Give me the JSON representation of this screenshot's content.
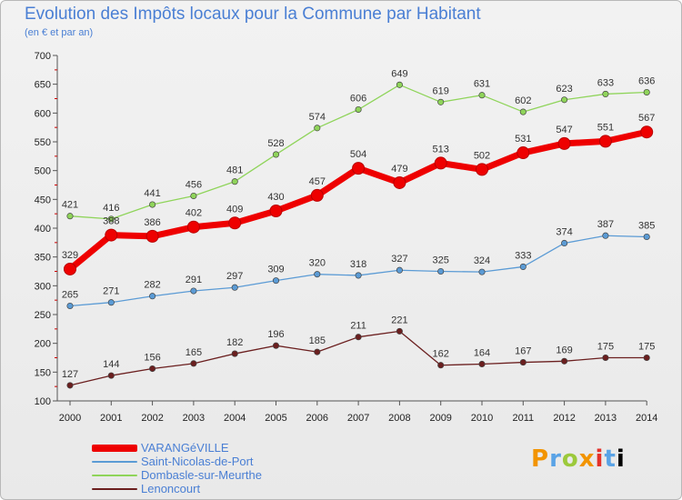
{
  "header": {
    "title": "Evolution des Impôts locaux pour la Commune par Habitant",
    "subtitle": "(en € et par an)"
  },
  "logo": {
    "text": "Proxiti",
    "letters": [
      "P",
      "r",
      "o",
      "x",
      "i",
      "t",
      "i"
    ]
  },
  "chart_data": {
    "type": "line",
    "title": "Evolution des Impôts locaux pour la Commune par Habitant",
    "subtitle": "(en € et par an)",
    "xlabel": "",
    "ylabel": "",
    "x": [
      "2000",
      "2001",
      "2002",
      "2003",
      "2004",
      "2005",
      "2006",
      "2007",
      "2008",
      "2009",
      "2010",
      "2011",
      "2012",
      "2013",
      "2014"
    ],
    "ylim": [
      100,
      700
    ],
    "yticks": [
      100,
      150,
      200,
      250,
      300,
      350,
      400,
      450,
      500,
      550,
      600,
      650,
      700
    ],
    "grid": false,
    "legend_position": "bottom-left",
    "series": [
      {
        "name": "VARANGéVILLE",
        "color": "#ee0000",
        "emphasis": "bold",
        "values": [
          329,
          388,
          386,
          402,
          409,
          430,
          457,
          504,
          479,
          513,
          502,
          531,
          547,
          551,
          567
        ]
      },
      {
        "name": "Saint-Nicolas-de-Port",
        "color": "#5b9bd5",
        "emphasis": "normal",
        "values": [
          265,
          271,
          282,
          291,
          297,
          309,
          320,
          318,
          327,
          325,
          324,
          333,
          374,
          387,
          385
        ]
      },
      {
        "name": "Dombasle-sur-Meurthe",
        "color": "#8fd45a",
        "emphasis": "normal",
        "values": [
          421,
          416,
          441,
          456,
          481,
          528,
          574,
          606,
          649,
          619,
          631,
          602,
          623,
          633,
          636
        ]
      },
      {
        "name": "Lenoncourt",
        "color": "#6b1f1f",
        "emphasis": "normal",
        "values": [
          127,
          144,
          156,
          165,
          182,
          196,
          185,
          211,
          221,
          162,
          164,
          167,
          169,
          175,
          175
        ]
      }
    ]
  }
}
